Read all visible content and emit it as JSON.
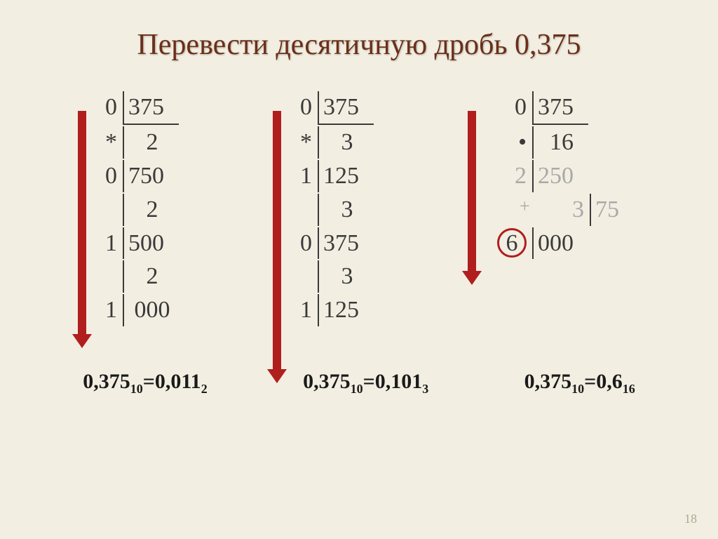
{
  "title": "Перевести десятичную дробь 0,375",
  "base2": {
    "arrow_color": "#b01e1e",
    "arrow_height": 320,
    "rows": [
      {
        "i": "0",
        "f": "375",
        "first": true
      },
      {
        "i": "*",
        "f": "   2"
      },
      {
        "i": "0",
        "f": "750"
      },
      {
        "i": "",
        "f": "   2"
      },
      {
        "i": "1",
        "f": "500"
      },
      {
        "i": "",
        "f": "   2"
      },
      {
        "i": "1",
        "f": " 000"
      }
    ]
  },
  "base3": {
    "arrow_color": "#b01e1e",
    "arrow_height": 370,
    "rows": [
      {
        "i": "0",
        "f": "375",
        "first": true
      },
      {
        "i": "*",
        "f": "   3"
      },
      {
        "i": "1",
        "f": "125"
      },
      {
        "i": "",
        "f": "   3"
      },
      {
        "i": "0",
        "f": "375"
      },
      {
        "i": "",
        "f": "   3"
      },
      {
        "i": "1",
        "f": "125"
      }
    ]
  },
  "base16": {
    "arrow_color": "#b01e1e",
    "arrow_height": 230,
    "rows": [
      {
        "i": "0",
        "f": "375",
        "first": true
      },
      {
        "i": "•",
        "f": "  16"
      },
      {
        "i": "2",
        "f": "250",
        "gray": true
      },
      {
        "i": "3",
        "f": "75",
        "gray": true,
        "plus": true
      },
      {
        "i": "6",
        "f": "000",
        "circle": true
      }
    ]
  },
  "results": {
    "r1_lhs": "0,375",
    "r1_lbase": "10",
    "r1_rhs": "0,011",
    "r1_rbase": "2",
    "r2_lhs": "0,375",
    "r2_lbase": "10",
    "r2_rhs": "0,101",
    "r2_rbase": "3",
    "r3_lhs": "0,375",
    "r3_lbase": "10",
    "r3_rhs": "0,6",
    "r3_rbase": "16"
  },
  "page_number": "18",
  "colors": {
    "background": "#f2eee1",
    "title": "#6b2f1a",
    "text": "#3a3a3a",
    "accent": "#b01e1e",
    "gray": "#a9a9a9"
  }
}
